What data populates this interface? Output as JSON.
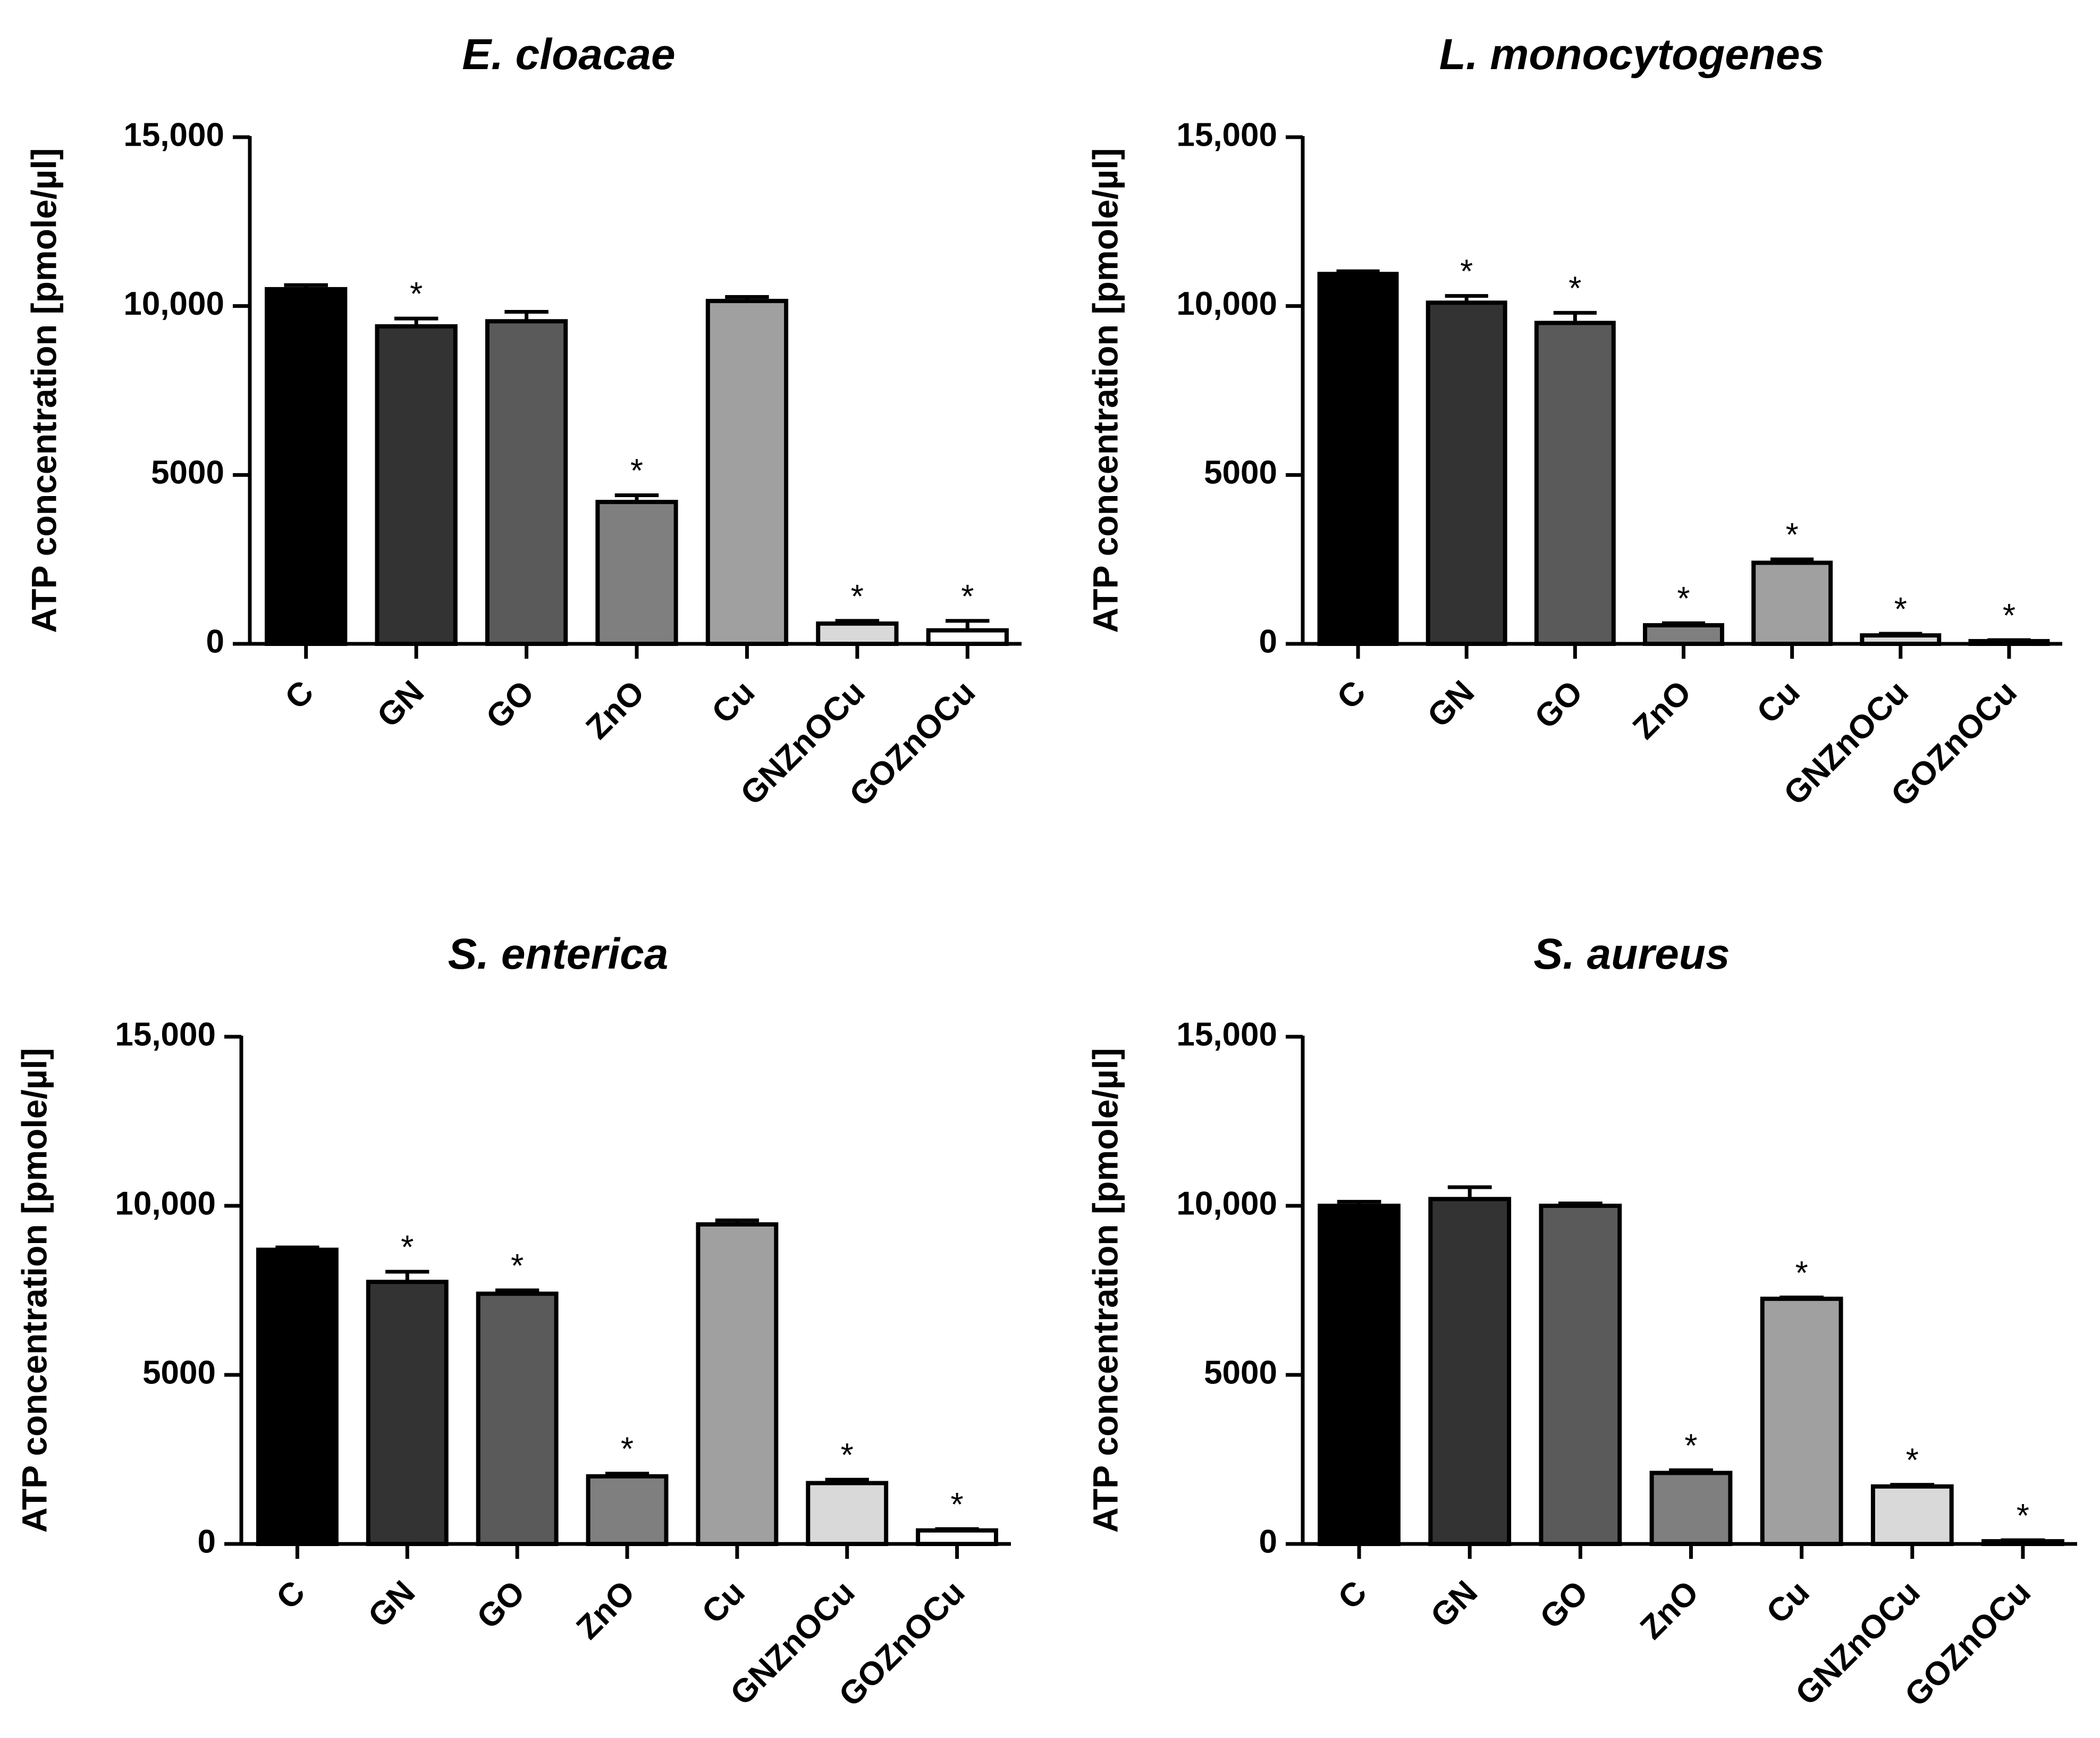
{
  "chart_data": [
    {
      "type": "bar",
      "title": "E. cloacae",
      "ylabel": "ATP concentration [pmole/µl]",
      "xlabel": "",
      "ylim": [
        0,
        15000
      ],
      "yticks": [
        0,
        5000,
        10000,
        15000
      ],
      "ytick_labels": [
        "0",
        "5000",
        "10,000",
        "15,000"
      ],
      "categories": [
        "C",
        "GN",
        "GO",
        "ZnO",
        "Cu",
        "GNZnOCu",
        "GOZnOCu"
      ],
      "values": [
        10500,
        9400,
        9550,
        4200,
        10150,
        600,
        400
      ],
      "errors": [
        120,
        230,
        280,
        200,
        120,
        80,
        280
      ],
      "significance": [
        "",
        "*",
        "",
        "*",
        "",
        "*",
        "*"
      ],
      "colors": [
        "#000000",
        "#333333",
        "#5a5a5a",
        "#7f7f7f",
        "#a0a0a0",
        "#d9d9d9",
        "#ffffff"
      ]
    },
    {
      "type": "bar",
      "title": "L. monocytogenes",
      "ylabel": "ATP concentration [pmole/µl]",
      "xlabel": "",
      "ylim": [
        0,
        15000
      ],
      "yticks": [
        0,
        5000,
        10000,
        15000
      ],
      "ytick_labels": [
        "0",
        "5000",
        "10,000",
        "15,000"
      ],
      "categories": [
        "C",
        "GN",
        "GO",
        "ZnO",
        "Cu",
        "GNZnOCu",
        "GOZnOCu"
      ],
      "values": [
        10950,
        10100,
        9500,
        550,
        2400,
        250,
        80
      ],
      "errors": [
        80,
        200,
        300,
        60,
        100,
        50,
        30
      ],
      "significance": [
        "",
        "*",
        "*",
        "*",
        "*",
        "*",
        "*"
      ],
      "colors": [
        "#000000",
        "#333333",
        "#5a5a5a",
        "#7f7f7f",
        "#a0a0a0",
        "#d9d9d9",
        "#ffffff"
      ]
    },
    {
      "type": "bar",
      "title": "S. enterica",
      "ylabel": "ATP concentration [pmole/µl]",
      "xlabel": "",
      "ylim": [
        0,
        15000
      ],
      "yticks": [
        0,
        5000,
        10000,
        15000
      ],
      "ytick_labels": [
        "0",
        "5000",
        "10,000",
        "15,000"
      ],
      "categories": [
        "C",
        "GN",
        "GO",
        "ZnO",
        "Cu",
        "GNZnOCu",
        "GOZnOCu"
      ],
      "values": [
        8700,
        7750,
        7400,
        2000,
        9450,
        1800,
        400
      ],
      "errors": [
        70,
        300,
        100,
        80,
        120,
        100,
        40
      ],
      "significance": [
        "",
        "*",
        "*",
        "*",
        "",
        "*",
        "*"
      ],
      "colors": [
        "#000000",
        "#333333",
        "#5a5a5a",
        "#7f7f7f",
        "#a0a0a0",
        "#d9d9d9",
        "#ffffff"
      ]
    },
    {
      "type": "bar",
      "title": "S. aureus",
      "ylabel": "ATP concentration [pmole/µl]",
      "xlabel": "",
      "ylim": [
        0,
        15000
      ],
      "yticks": [
        0,
        5000,
        10000,
        15000
      ],
      "ytick_labels": [
        "0",
        "5000",
        "10,000",
        "15,000"
      ],
      "categories": [
        "C",
        "GN",
        "GO",
        "ZnO",
        "Cu",
        "GNZnOCu",
        "GOZnOCu"
      ],
      "values": [
        10000,
        10200,
        10000,
        2100,
        7250,
        1700,
        80
      ],
      "errors": [
        120,
        350,
        70,
        80,
        40,
        50,
        30
      ],
      "significance": [
        "",
        "",
        "",
        "*",
        "*",
        "*",
        "*"
      ],
      "colors": [
        "#000000",
        "#333333",
        "#5a5a5a",
        "#7f7f7f",
        "#a0a0a0",
        "#d9d9d9",
        "#ffffff"
      ]
    }
  ]
}
